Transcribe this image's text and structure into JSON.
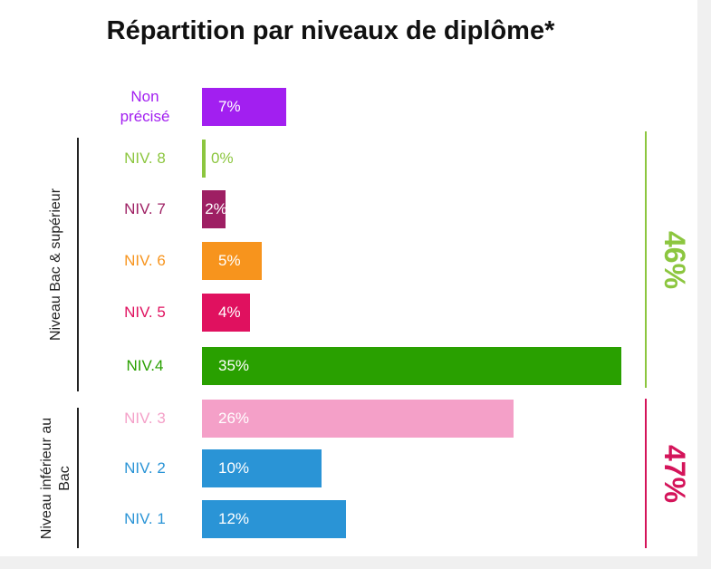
{
  "chart_data": {
    "type": "bar",
    "orientation": "horizontal",
    "title": "Répartition par niveaux de diplôme*",
    "categories": [
      "Non précisé",
      "NIV. 8",
      "NIV. 7",
      "NIV. 6",
      "NIV. 5",
      "NIV.4",
      "NIV. 3",
      "NIV. 2",
      "NIV. 1"
    ],
    "values": [
      7,
      0,
      2,
      5,
      4,
      35,
      26,
      10,
      12
    ],
    "value_labels": [
      "7%",
      "0%",
      "2%",
      "5%",
      "4%",
      "35%",
      "26%",
      "10%",
      "12%"
    ],
    "colors": [
      "#a21ff0",
      "#8cc63f",
      "#9e1f63",
      "#f7941d",
      "#e0115f",
      "#29a000",
      "#f4a0c8",
      "#2a94d6",
      "#2a94d6"
    ],
    "groups": [
      {
        "name": "Niveau Bac & supérieur",
        "value": 46,
        "value_label": "46%",
        "color": "#8cc63f"
      },
      {
        "name": "Niveau inférieur au Bac",
        "value": 47,
        "value_label": "47%",
        "color": "#d4145a"
      }
    ]
  }
}
